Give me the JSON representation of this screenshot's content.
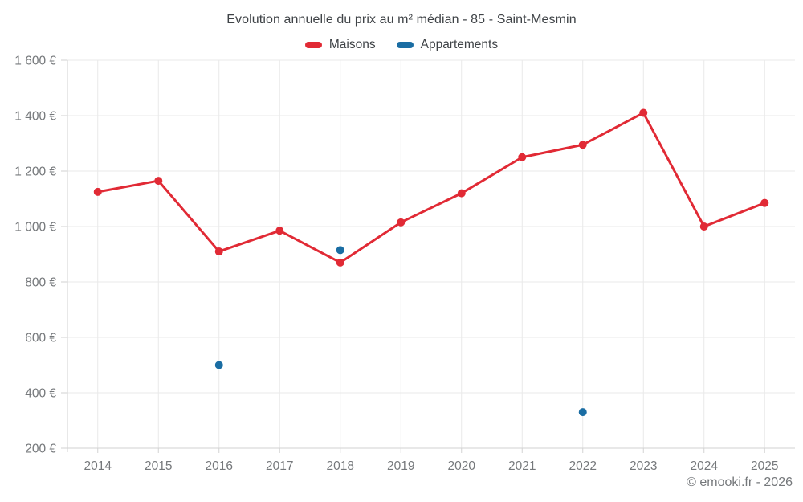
{
  "header": {
    "title": "Evolution annuelle du prix au m² médian - 85 - Saint-Mesmin"
  },
  "legend": {
    "items": [
      {
        "label": "Maisons",
        "color": "#e12a35"
      },
      {
        "label": "Appartements",
        "color": "#1a6da3"
      }
    ]
  },
  "footer": {
    "credit": "© emooki.fr - 2026"
  },
  "chart_data": {
    "type": "line",
    "title": "Evolution annuelle du prix au m² médian - 85 - Saint-Mesmin",
    "categories": [
      "2014",
      "2015",
      "2016",
      "2017",
      "2018",
      "2019",
      "2020",
      "2021",
      "2022",
      "2023",
      "2024",
      "2025"
    ],
    "series": [
      {
        "name": "Maisons",
        "type": "line",
        "color": "#e12a35",
        "values": [
          1125,
          1165,
          910,
          985,
          870,
          1015,
          1120,
          1250,
          1295,
          1410,
          1000,
          1085
        ]
      },
      {
        "name": "Appartements",
        "type": "scatter",
        "color": "#1a6da3",
        "values": [
          null,
          null,
          500,
          null,
          915,
          null,
          null,
          null,
          330,
          null,
          null,
          null
        ]
      }
    ],
    "xlabel": "",
    "ylabel": "",
    "ylim": [
      200,
      1600
    ],
    "y_tick_step": 200,
    "y_tick_labels": [
      "200 €",
      "400 €",
      "600 €",
      "800 €",
      "1 000 €",
      "1 200 €",
      "1 400 €",
      "1 600 €"
    ],
    "currency_suffix": " €",
    "grid": true,
    "legend_position": "top",
    "colors": {
      "grid": "#e9e9e9",
      "axis": "#d2d2d2",
      "tick_text": "#75787b"
    }
  }
}
